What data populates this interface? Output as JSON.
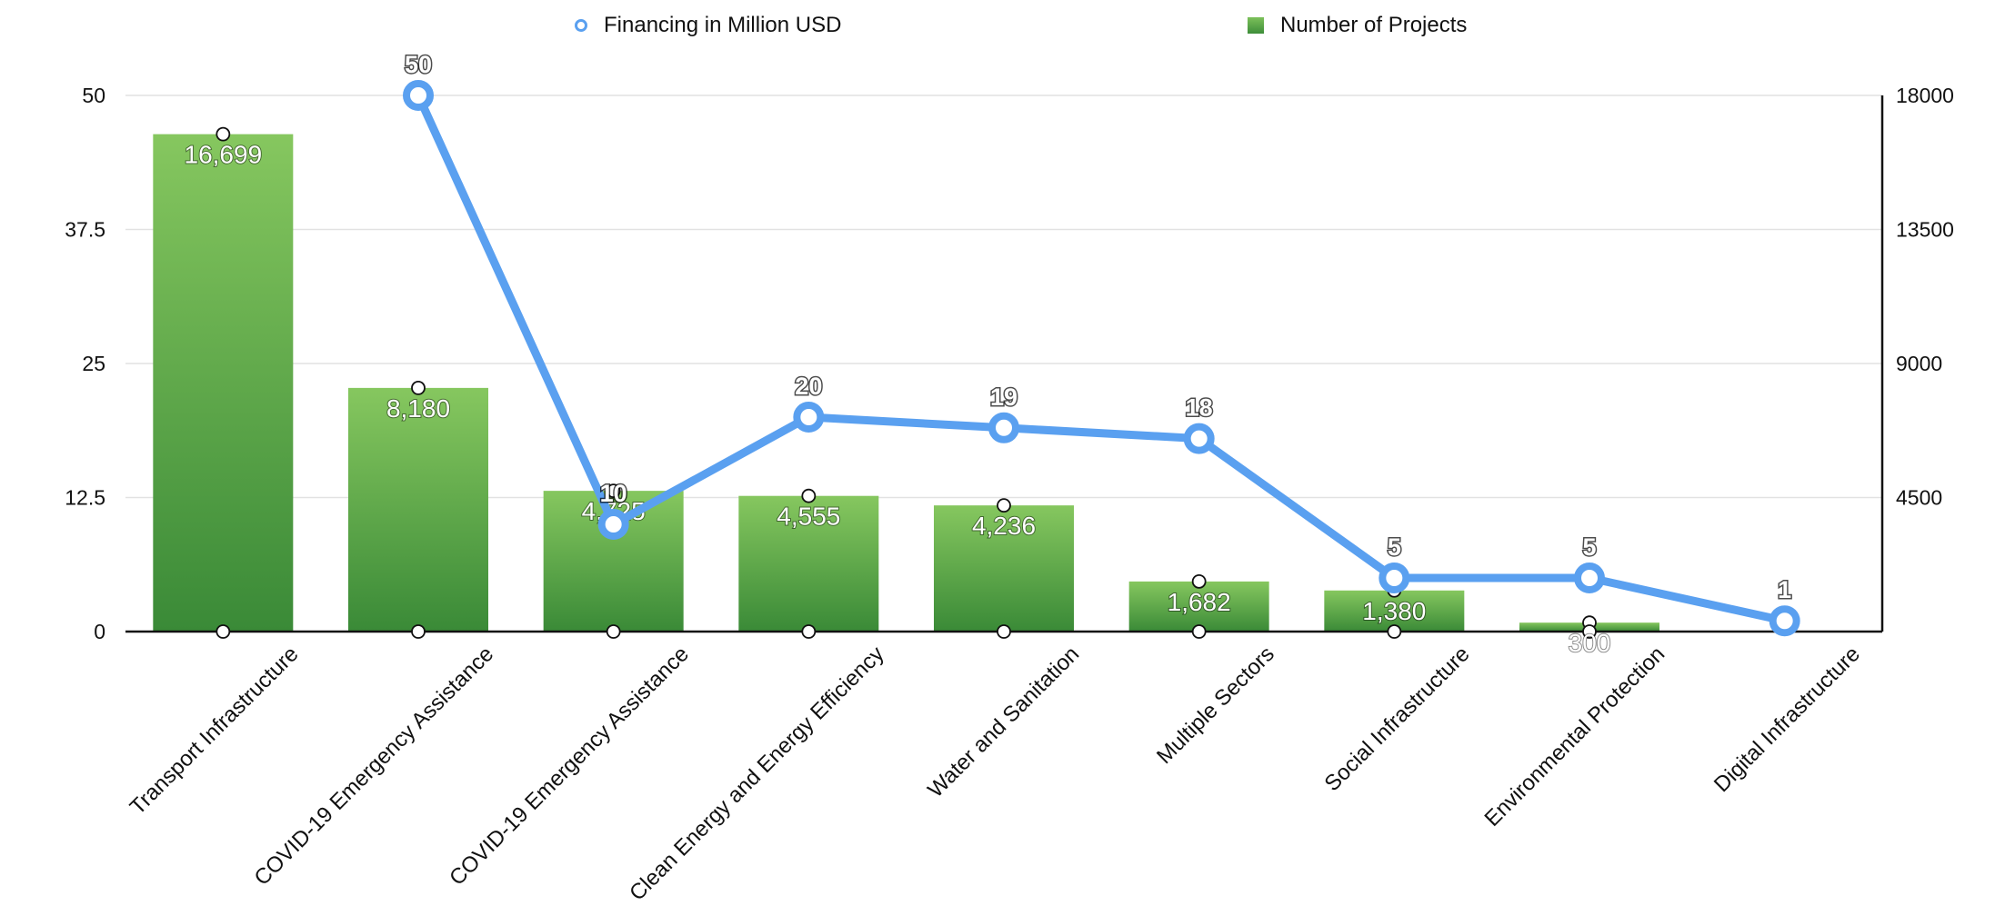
{
  "legend": {
    "line_label": "Financing in Million USD",
    "bar_label": "Number of Projects"
  },
  "colors": {
    "line": "#5aa0f0",
    "bar_top": "#86c75f",
    "bar_bottom": "#3a8a37",
    "axis": "#111111",
    "grid": "#e2e2e2"
  },
  "chart_data": {
    "type": "bar",
    "categories": [
      "Transport Infrastructure",
      "COVID-19 Emergency Assistance",
      "COVID-19 Emergency Assistance",
      "Clean Energy and Energy Efficiency",
      "Water and Sanitation",
      "Multiple Sectors",
      "Social Infrastructure",
      "Environmental Protection",
      "Digital Infrastructure"
    ],
    "series": [
      {
        "name": "Number of Projects",
        "type": "bar",
        "axis": "right",
        "values": [
          16699,
          8180,
          4725,
          4555,
          4236,
          1682,
          1380,
          300,
          null
        ],
        "labels": [
          "16,699",
          "8,180",
          "4,725",
          "4,555",
          "4,236",
          "1,682",
          "1,380",
          "300",
          ""
        ]
      },
      {
        "name": "Financing in Million USD",
        "type": "line",
        "axis": "left",
        "values": [
          null,
          50,
          10,
          20,
          19,
          18,
          5,
          5,
          1
        ],
        "labels": [
          "",
          "50",
          "10",
          "20",
          "19",
          "18",
          "5",
          "5",
          "1"
        ]
      }
    ],
    "y_left": {
      "ticks": [
        "0",
        "12.5",
        "25",
        "37.5",
        "50"
      ],
      "range": [
        0,
        50
      ]
    },
    "y_right": {
      "ticks": [
        "4500",
        "9000",
        "13500",
        "18000"
      ],
      "range": [
        0,
        18000
      ]
    },
    "grid": true,
    "legend_position": "top"
  }
}
